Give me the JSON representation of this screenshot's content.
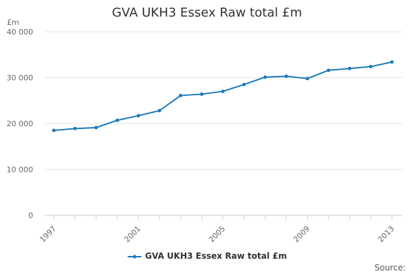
{
  "chart_data": {
    "type": "line",
    "title": "GVA UKH3 Essex Raw total £m",
    "ylabel": "£m",
    "xlabel": "",
    "x": [
      1997,
      1998,
      1999,
      2000,
      2001,
      2002,
      2003,
      2004,
      2005,
      2006,
      2007,
      2008,
      2009,
      2010,
      2011,
      2012,
      2013
    ],
    "x_tick_labels": [
      "1997",
      "2001",
      "2005",
      "2009",
      "2013"
    ],
    "y_ticks": [
      0,
      10000,
      20000,
      30000,
      40000
    ],
    "y_tick_labels": [
      "0",
      "10 000",
      "20 000",
      "30 000",
      "40 000"
    ],
    "ylim": [
      0,
      40000
    ],
    "series": [
      {
        "name": "GVA UKH3 Essex Raw total £m",
        "color": "#1a7ab8",
        "values": [
          18500,
          18900,
          19100,
          20700,
          21700,
          22800,
          26100,
          26400,
          27000,
          28500,
          30100,
          30300,
          29800,
          31600,
          32000,
          32400,
          33400
        ]
      }
    ],
    "legend_position": "bottom",
    "grid": true
  },
  "footer": {
    "source": "Source:"
  }
}
